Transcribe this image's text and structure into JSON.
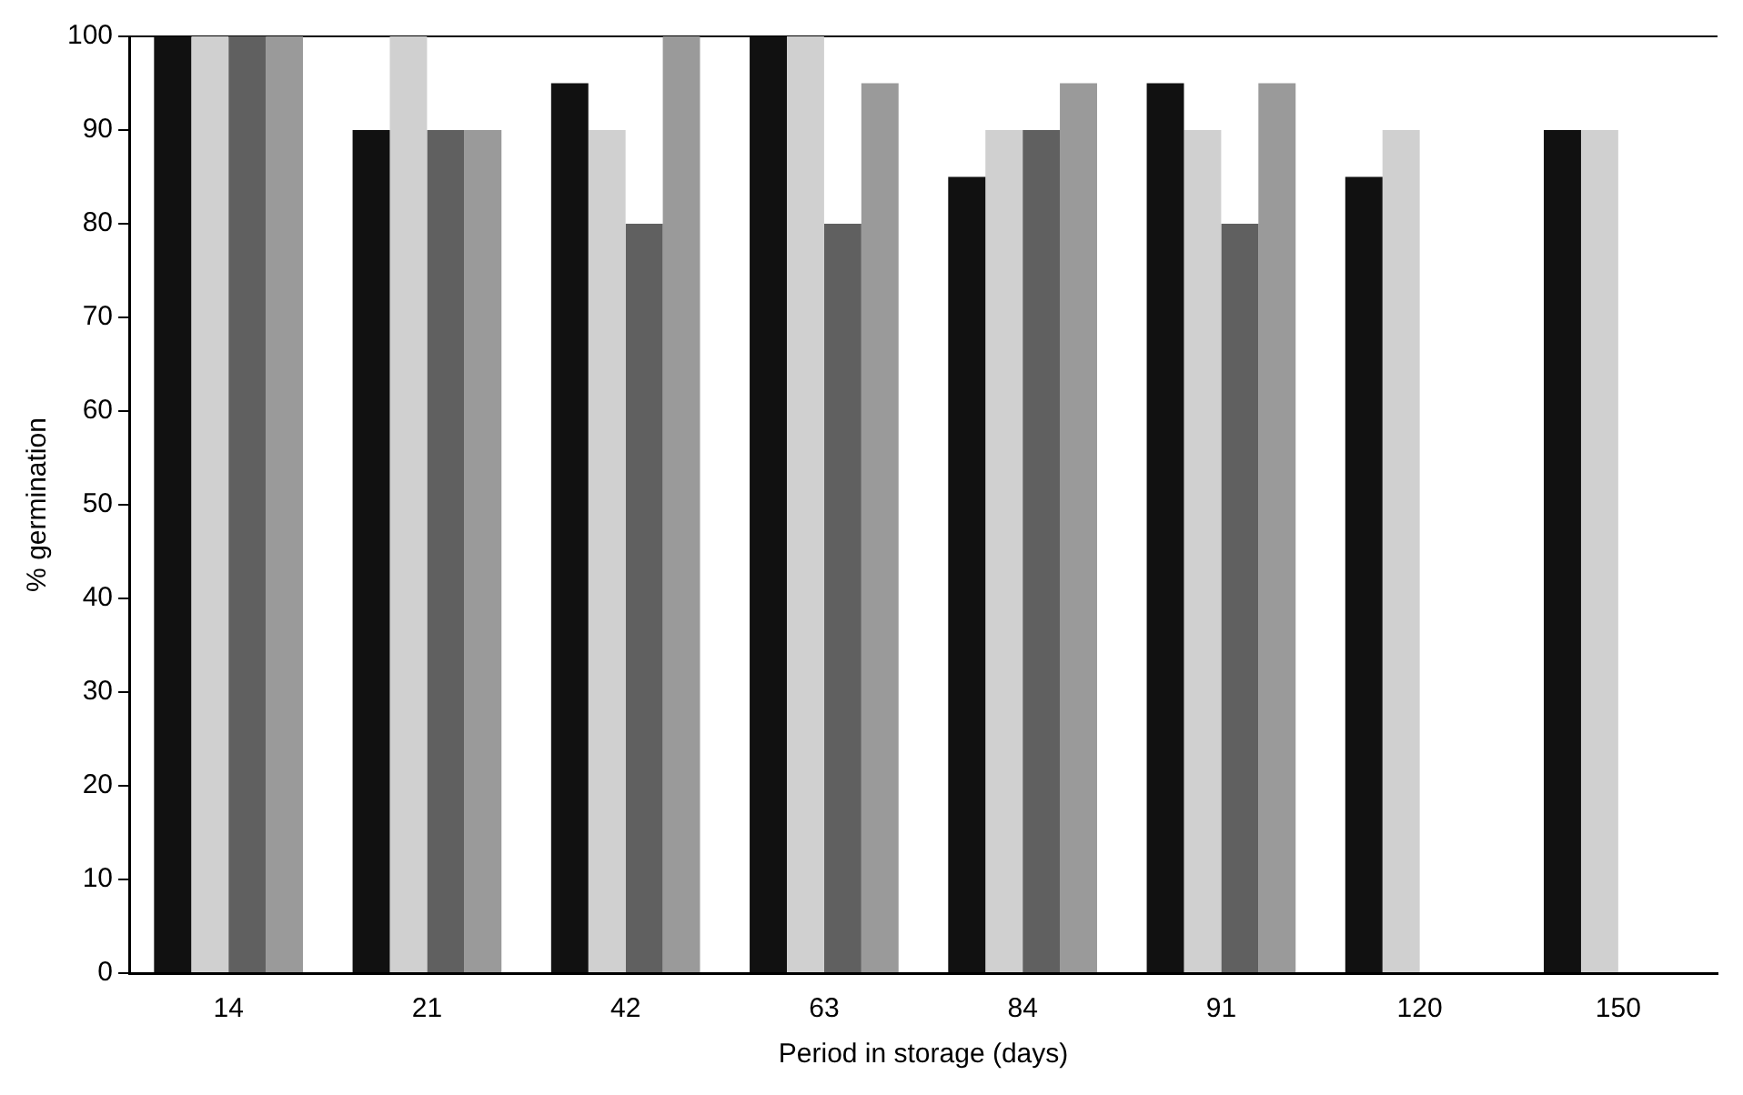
{
  "chart_data": {
    "type": "bar",
    "xlabel": "Period in storage (days)",
    "ylabel": "% germination",
    "categories": [
      "14",
      "21",
      "42",
      "63",
      "84",
      "91",
      "120",
      "150"
    ],
    "series": [
      {
        "color": "#111111",
        "values": [
          100,
          90,
          95,
          100,
          85,
          95,
          85,
          90
        ]
      },
      {
        "color": "#d0d0d0",
        "values": [
          100,
          100,
          90,
          100,
          90,
          90,
          90,
          90
        ]
      },
      {
        "color": "#606060",
        "values": [
          100,
          90,
          80,
          80,
          90,
          80,
          null,
          null
        ]
      },
      {
        "color": "#9a9a9a",
        "values": [
          100,
          90,
          100,
          95,
          95,
          95,
          null,
          null
        ]
      }
    ],
    "ylim": [
      0,
      100
    ],
    "yticks": [
      0,
      10,
      20,
      30,
      40,
      50,
      60,
      70,
      80,
      90,
      100
    ],
    "grid": false,
    "legend": false
  }
}
